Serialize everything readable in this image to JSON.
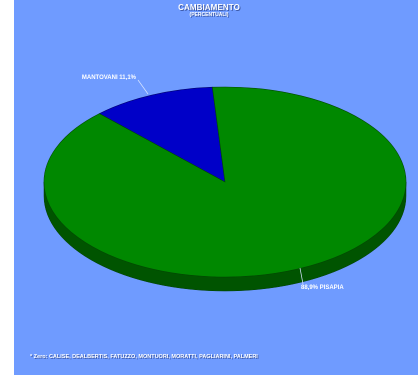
{
  "title": "CAMBIAMENTO",
  "subtitle": "(PERCENTUALI)",
  "footnote": "* Zero: CALISE, DEALBERTIS, FATUZZO, MONTUORI, MORATTI, PAGLIARINI, PALMERI",
  "colors": {
    "background": "#6f9bff",
    "pisapia": "#008800",
    "mantovani": "#0000c8"
  },
  "chart_data": {
    "type": "pie",
    "title": "CAMBIAMENTO",
    "subtitle": "(PERCENTUALI)",
    "slices": [
      {
        "name": "PISAPIA",
        "value": 88.9,
        "label": "88,9% PISAPIA",
        "color": "#008800"
      },
      {
        "name": "MANTOVANI",
        "value": 11.1,
        "label": "MANTOVANI 11,1%",
        "color": "#0000c8"
      }
    ]
  }
}
